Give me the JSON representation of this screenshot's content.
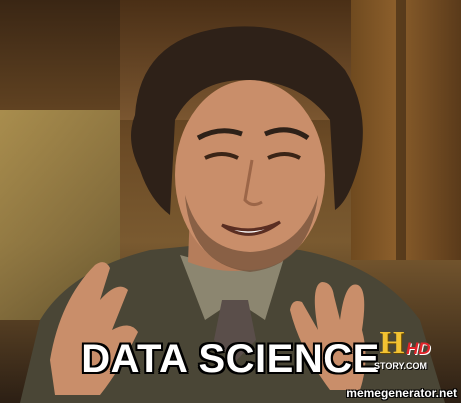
{
  "meme": {
    "caption": "DATA SCIENCE",
    "watermark": "memegenerator.net"
  },
  "channel_logo": {
    "letter": "H",
    "hd": "HD",
    "site": "STORY.COM"
  },
  "colors": {
    "caption_text": "#ffffff",
    "caption_outline": "#000000",
    "suit": "#4a4636",
    "shirt": "#8c8670",
    "skin": "#c98e6a",
    "hair": "#2e2118",
    "logo_gold": "#f2c232",
    "logo_red": "#e0242a"
  }
}
